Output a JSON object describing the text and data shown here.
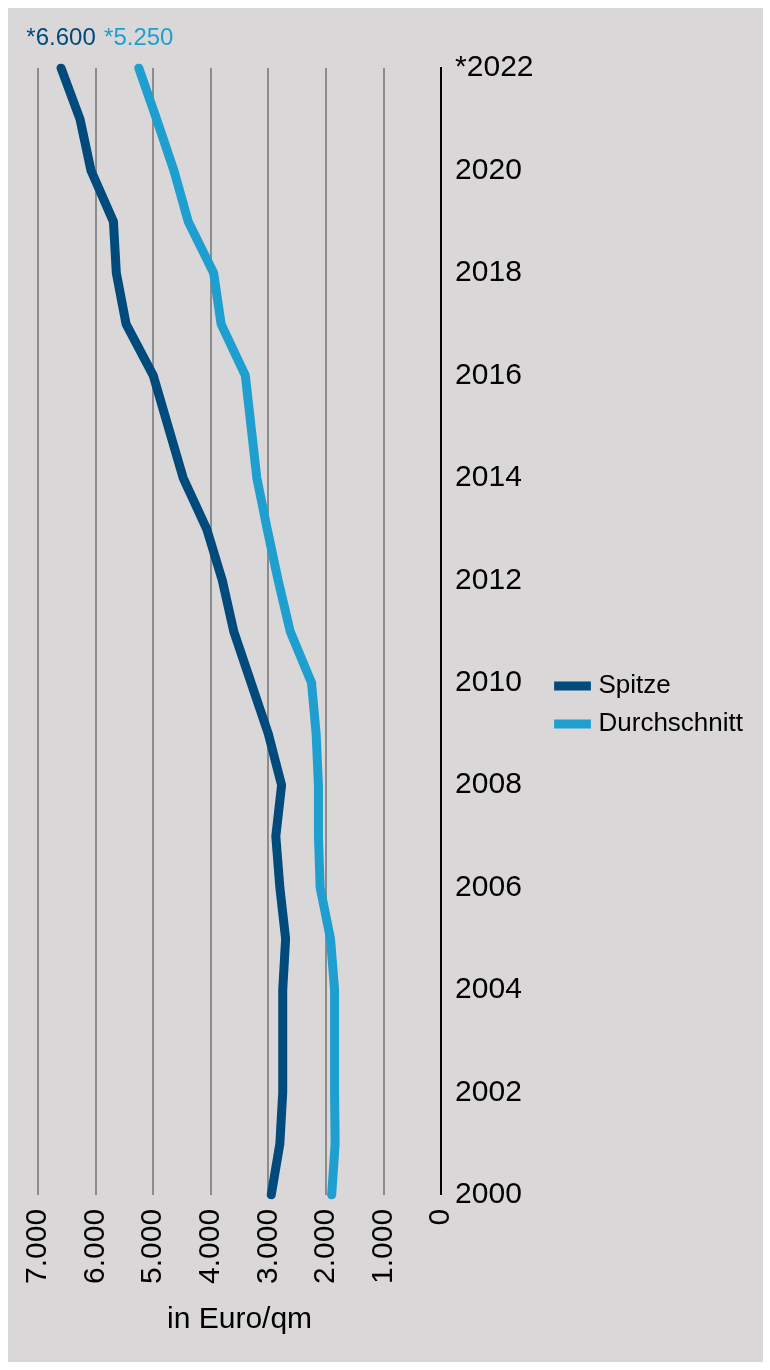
{
  "chart_data": {
    "type": "line",
    "orientation": "horizontal",
    "xlabel": "in Euro/qm",
    "categories": [
      "*2022",
      null,
      "2020",
      null,
      "2018",
      null,
      "2016",
      null,
      "2014",
      null,
      "2012",
      null,
      "2010",
      null,
      "2008",
      null,
      "2006",
      null,
      "2004",
      null,
      "2002",
      null,
      "2000"
    ],
    "series": [
      {
        "name": "Spitze",
        "color": "#004a7c",
        "values": [
          6600,
          6270,
          6080,
          5690,
          5640,
          5470,
          5000,
          4740,
          4480,
          4070,
          3800,
          3600,
          3300,
          3000,
          2770,
          2870,
          2800,
          2700,
          2750,
          2750,
          2750,
          2800,
          2950
        ]
      },
      {
        "name": "Durchschnitt",
        "color": "#1f9fd0",
        "values": [
          5250,
          4940,
          4640,
          4390,
          3950,
          3820,
          3400,
          3300,
          3200,
          3020,
          2830,
          2620,
          2250,
          2170,
          2130,
          2130,
          2100,
          1920,
          1850,
          1850,
          1850,
          1840,
          1900
        ]
      }
    ],
    "xlim": [
      7000,
      0
    ],
    "xticks": [
      {
        "value": 7000,
        "label": "7.000"
      },
      {
        "value": 6000,
        "label": "6.000"
      },
      {
        "value": 5000,
        "label": "5.000"
      },
      {
        "value": 4000,
        "label": "4.000"
      },
      {
        "value": 3000,
        "label": "3.000"
      },
      {
        "value": 2000,
        "label": "2.000"
      },
      {
        "value": 1000,
        "label": "1.000"
      },
      {
        "value": 0,
        "label": "0"
      }
    ],
    "grid": "x",
    "legend": "right",
    "marker": "none",
    "line_style": "solid",
    "annotations": [
      {
        "text": "*6.600",
        "x": 6600,
        "y": "*2022"
      },
      {
        "text": "*5.250",
        "x": 5250,
        "y": "*2022"
      }
    ]
  }
}
